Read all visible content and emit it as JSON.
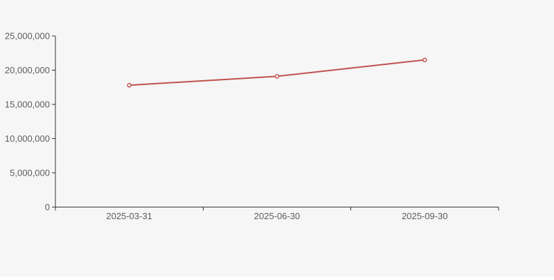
{
  "chart_data": {
    "type": "line",
    "title": "",
    "xlabel": "",
    "ylabel": "",
    "categories": [
      "2025-03-31",
      "2025-06-30",
      "2025-09-30"
    ],
    "series": [
      {
        "name": "value",
        "values": [
          17800000,
          19100000,
          21500000
        ]
      }
    ],
    "ylim": [
      0,
      25000000
    ],
    "y_tick_interval": 5000000,
    "y_tick_labels": [
      "0",
      "5,000,000",
      "10,000,000",
      "15,000,000",
      "20,000,000",
      "25,000,000"
    ],
    "grid": false,
    "legend": false,
    "marker": "hollow-circle",
    "x_tick_position": "band-boundaries"
  },
  "colors": {
    "background": "#f6f6f6",
    "line": "#c0504d",
    "marker_fill": "#ffffff",
    "axis": "#333333",
    "tick_label": "#5c5c5c"
  }
}
